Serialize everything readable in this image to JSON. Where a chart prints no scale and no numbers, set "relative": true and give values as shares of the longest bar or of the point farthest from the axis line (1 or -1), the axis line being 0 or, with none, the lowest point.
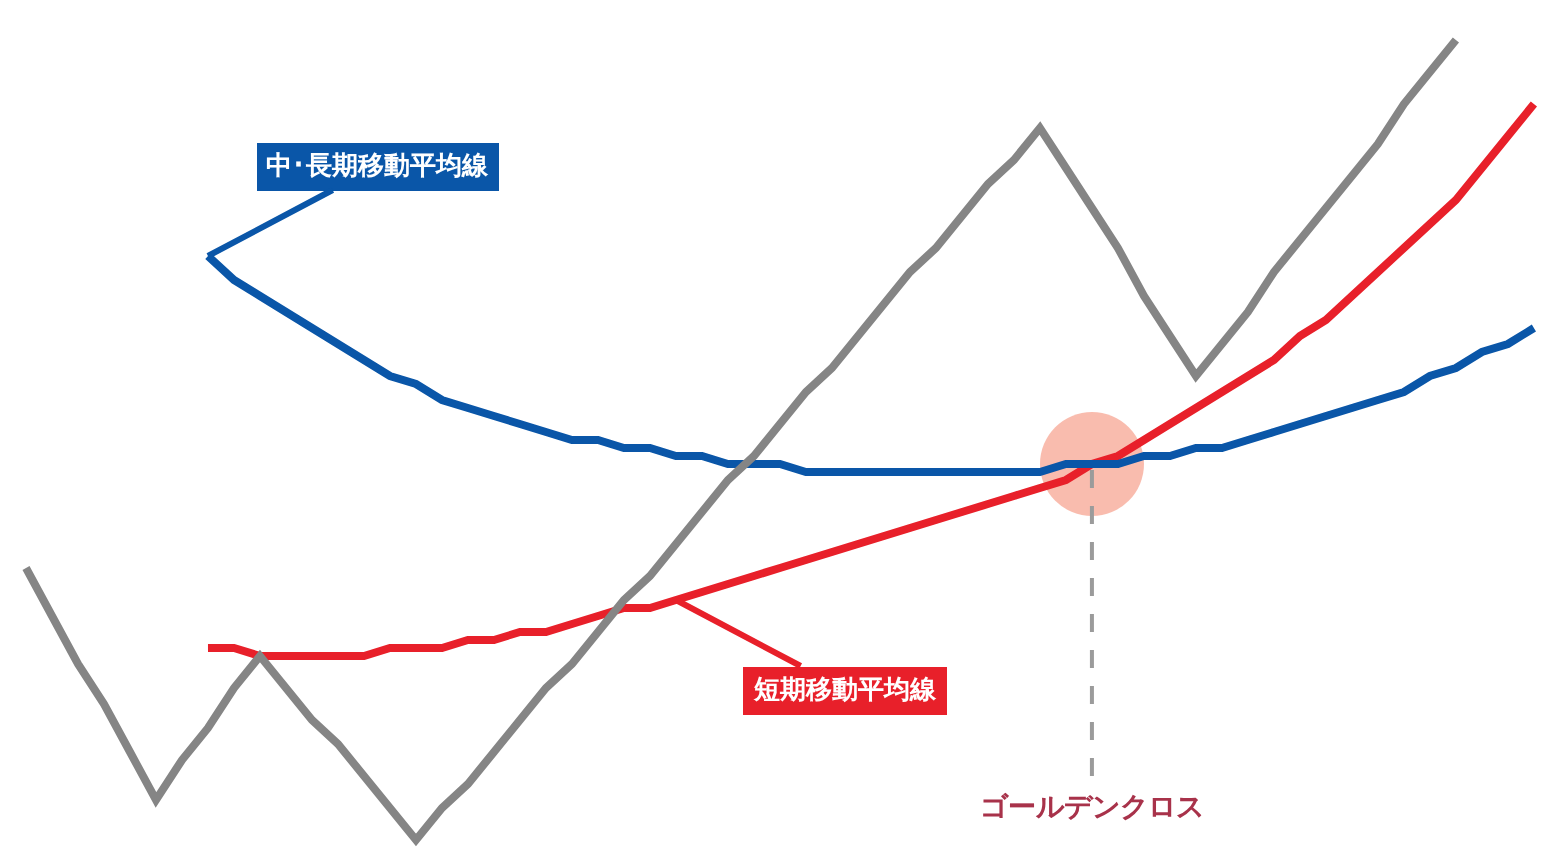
{
  "chart_data": {
    "type": "line",
    "relative": true,
    "marker": "none",
    "line_style": "solid",
    "categories": [
      null,
      null,
      null,
      null,
      null,
      null,
      null,
      null,
      null,
      null,
      null,
      null,
      null,
      null,
      null,
      null,
      null,
      null,
      null,
      null,
      null,
      null,
      null,
      null,
      null,
      null,
      null,
      null,
      null,
      null,
      null,
      null,
      null,
      null,
      null,
      null,
      null,
      null,
      null,
      null,
      null,
      null,
      null,
      null,
      null,
      null,
      null,
      null,
      null,
      null,
      null,
      null,
      null,
      null,
      null,
      null,
      null,
      null,
      null,
      null
    ],
    "series": [
      {
        "name": "短期移動平均線",
        "color": "#e8202a",
        "values": [
          null,
          null,
          null,
          null,
          null,
          null,
          null,
          null,
          0.24,
          0.24,
          0.23,
          0.23,
          0.23,
          0.23,
          0.23,
          0.24,
          0.24,
          0.24,
          0.25,
          0.25,
          0.26,
          0.26,
          0.27,
          0.28,
          0.29,
          0.29,
          0.3,
          0.31,
          0.32,
          0.33,
          0.34,
          0.35,
          0.36,
          0.37,
          0.38,
          0.39,
          0.4,
          0.41,
          0.42,
          0.43,
          0.44,
          0.45,
          0.47,
          0.48,
          0.5,
          0.52,
          0.54,
          0.56,
          0.58,
          0.6,
          0.63,
          0.65,
          0.68,
          0.71,
          0.74,
          0.77,
          0.8,
          0.84,
          0.88,
          0.92
        ]
      },
      {
        "name": "中･長期移動平均線",
        "color": "#0a56a8",
        "values": [
          null,
          null,
          null,
          null,
          null,
          null,
          null,
          null,
          0.73,
          0.7,
          0.68,
          0.66,
          0.64,
          0.62,
          0.6,
          0.58,
          0.57,
          0.55,
          0.54,
          0.53,
          0.52,
          0.51,
          0.5,
          0.5,
          0.49,
          0.49,
          0.48,
          0.48,
          0.47,
          0.47,
          0.47,
          0.46,
          0.46,
          0.46,
          0.46,
          0.46,
          0.46,
          0.46,
          0.46,
          0.46,
          0.46,
          0.47,
          0.47,
          0.47,
          0.48,
          0.48,
          0.49,
          0.49,
          0.5,
          0.51,
          0.52,
          0.53,
          0.54,
          0.55,
          0.56,
          0.58,
          0.59,
          0.61,
          0.62,
          0.64
        ]
      },
      {
        "color": "#858585",
        "values": [
          null,
          0.34,
          0.28,
          0.22,
          0.17,
          0.11,
          0.05,
          0.1,
          0.14,
          0.19,
          0.23,
          0.19,
          0.15,
          0.12,
          0.08,
          0.04,
          0,
          0.04,
          0.07,
          0.11,
          0.15,
          0.19,
          0.22,
          0.26,
          0.3,
          0.33,
          0.37,
          0.41,
          0.45,
          0.48,
          0.52,
          0.56,
          0.59,
          0.63,
          0.67,
          0.71,
          0.74,
          0.78,
          0.82,
          0.85,
          0.89,
          0.84,
          0.79,
          0.74,
          0.68,
          0.63,
          0.58,
          0.62,
          0.66,
          0.71,
          0.75,
          0.79,
          0.83,
          0.87,
          0.92,
          0.96,
          1,
          null,
          null,
          null
        ]
      }
    ],
    "annotations": [
      "ゴールデンクロス"
    ]
  }
}
